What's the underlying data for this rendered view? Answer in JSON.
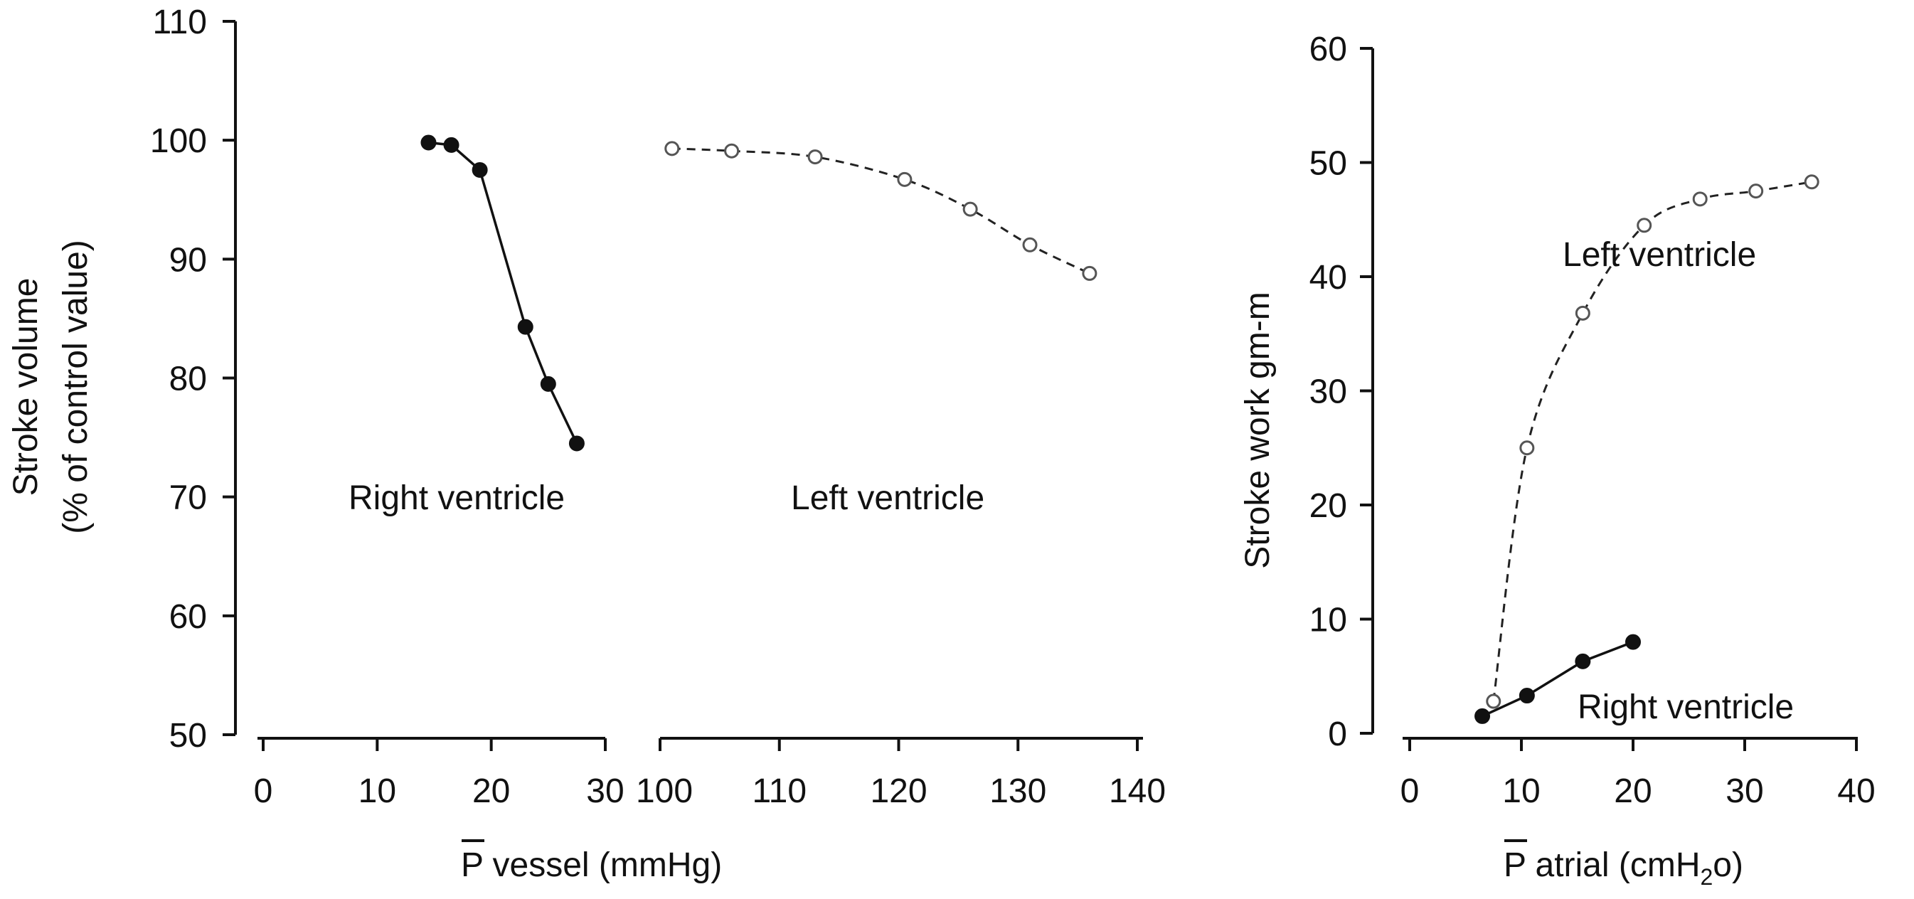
{
  "chart_data": [
    {
      "type": "line",
      "ylabel_line1": "Stroke volume",
      "ylabel_line2": "(% of control value)",
      "xlabel_overbar": "P",
      "xlabel_rest": " vessel (mmHg)",
      "ylim": [
        50,
        110
      ],
      "yticks": [
        50,
        60,
        70,
        80,
        90,
        100,
        110
      ],
      "grid": false,
      "panels": [
        {
          "xlim": [
            0,
            30
          ],
          "xticks": [
            "0",
            "10",
            "20",
            "30"
          ],
          "series": [
            {
              "name": "Right ventricle",
              "style": "solid-filled",
              "x": [
                14.5,
                16.5,
                19,
                23,
                25,
                27.5
              ],
              "y": [
                99.8,
                99.6,
                97.5,
                84.3,
                79.5,
                74.5
              ]
            }
          ]
        },
        {
          "xlim": [
            100,
            142
          ],
          "xticks": [
            "100",
            "110",
            "120",
            "130",
            "140"
          ],
          "series": [
            {
              "name": "Left ventricle",
              "style": "dashed-open",
              "x": [
                101,
                106,
                113,
                120.5,
                126,
                131,
                136
              ],
              "y": [
                99.3,
                99.1,
                98.6,
                96.7,
                94.2,
                91.2,
                88.8
              ]
            }
          ]
        }
      ]
    },
    {
      "type": "line",
      "ylabel": "Stroke work gm-m",
      "xlabel_overbar": "P",
      "xlabel_rest": " atrial (cmH",
      "xlabel_sub": "2",
      "xlabel_end": "o)",
      "xlim": [
        0,
        40
      ],
      "ylim": [
        0,
        60
      ],
      "xticks": [
        0,
        10,
        20,
        30,
        40
      ],
      "yticks": [
        0,
        10,
        20,
        30,
        40,
        50,
        60
      ],
      "grid": false,
      "series": [
        {
          "name": "Left ventricle",
          "style": "dashed-open",
          "x": [
            7.5,
            10.5,
            15.5,
            21,
            26,
            31,
            36
          ],
          "y": [
            2.8,
            25,
            36.8,
            44.5,
            46.8,
            47.5,
            48.3
          ]
        },
        {
          "name": "Right ventricle",
          "style": "solid-filled",
          "x": [
            6.5,
            10.5,
            15.5,
            20
          ],
          "y": [
            1.5,
            3.3,
            6.3,
            8
          ]
        }
      ]
    }
  ]
}
